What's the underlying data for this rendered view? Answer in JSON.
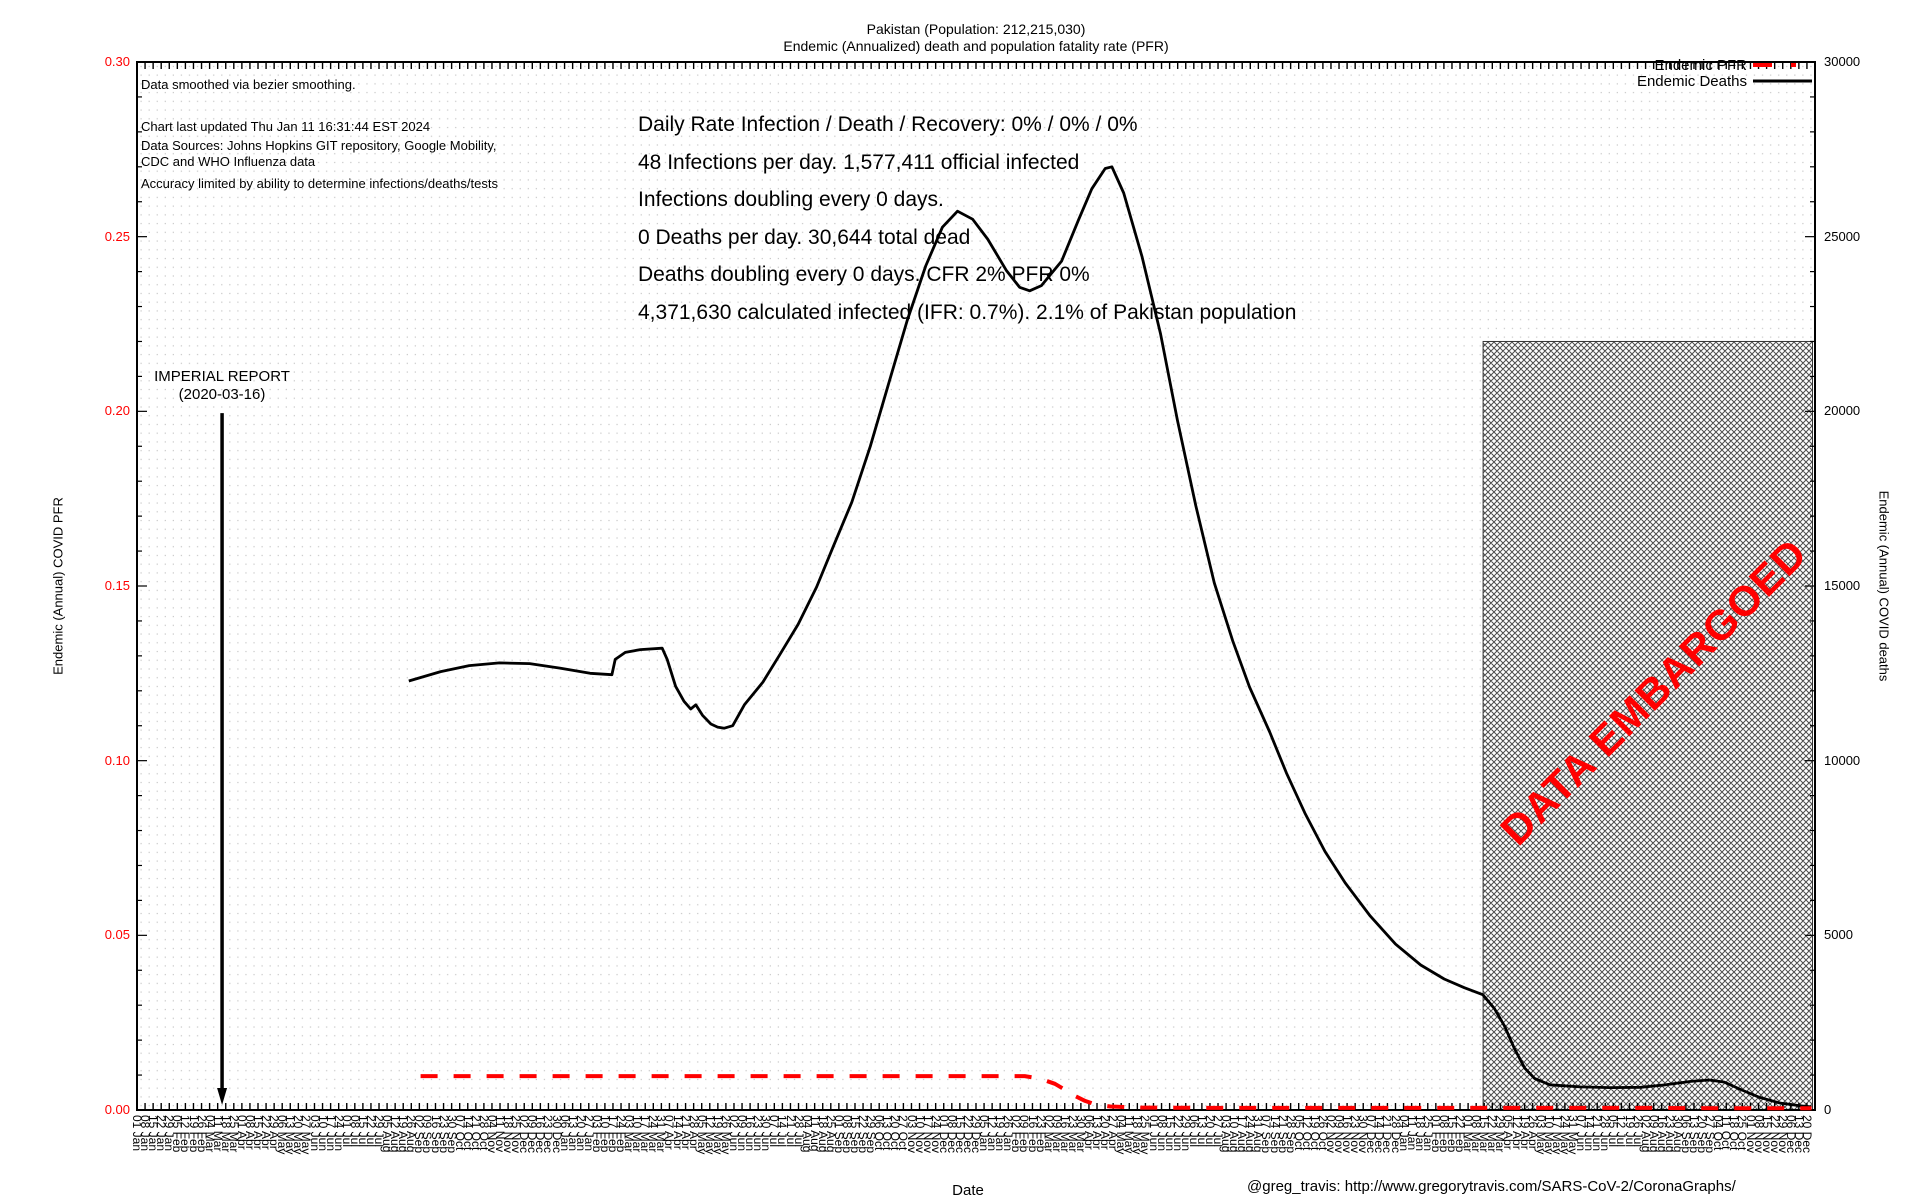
{
  "title": {
    "line1": "Pakistan (Population: 212,215,030)",
    "line2": "Endemic (Annualized) death and population fatality rate (PFR)"
  },
  "annotations": {
    "smoothing": "Data smoothed via bezier smoothing.",
    "updated": "Chart last updated Thu Jan 11 16:31:44 EST 2024",
    "sources_line1": "Data Sources: Johns Hopkins GIT repository, Google Mobility,",
    "sources_line2": "CDC and WHO Influenza data",
    "accuracy": "Accuracy limited by ability to determine infections/deaths/tests",
    "imperial_line1": "IMPERIAL REPORT",
    "imperial_line2": "(2020-03-16)",
    "embargo": "DATA EMBARGOED"
  },
  "stats": {
    "line1": "Daily Rate Infection / Death / Recovery: 0% / 0% / 0%",
    "line2": "48 Infections per day.  1,577,411 official infected",
    "line3": "Infections doubling every 0 days.",
    "line4": "0 Deaths per day.  30,644 total dead",
    "line5": "Deaths doubling every 0 days.  CFR 2%  PFR 0%",
    "line6": "4,371,630 calculated infected (IFR: 0.7%).  2.1% of Pakistan population"
  },
  "legend": {
    "pfr": "Endemic PFR",
    "deaths": "Endemic Deaths"
  },
  "axes": {
    "left_label": "Endemic (Annual) COVID PFR",
    "right_label": "Endemic (Annual) COVID deaths",
    "x_label": "Date",
    "left_ticks": [
      "0.30",
      "0.25",
      "0.20",
      "0.15",
      "0.10",
      "0.05",
      "0.00"
    ],
    "right_ticks": [
      "30000",
      "25000",
      "20000",
      "15000",
      "10000",
      "5000",
      "0"
    ]
  },
  "footer": "@greg_travis: http://www.gregorytravis.com/SARS-CoV-2/CoronaGraphs/",
  "colors": {
    "pfr_line": "#ff0000",
    "deaths_line": "#000000",
    "left_tick_labels": "#ff0000",
    "embargo_text": "#ff0000",
    "grid_dot": "#c6c6c6",
    "hatch": "#4d4d4d"
  },
  "chart_data": {
    "type": "line",
    "x_axis": {
      "unit": "axis_fraction",
      "tick_start_date": "2020-01-01",
      "tick_step_days": 7,
      "tick_count": 208,
      "tick_format": "DD Mon",
      "first_tick_label": "01 Jan",
      "last_tick_label": "20 Dec",
      "rotated_labels": true
    },
    "y_left": {
      "label": "Endemic (Annual) COVID PFR",
      "min": 0,
      "max": 0.3,
      "major_step": 0.05,
      "minor_step": 0.01
    },
    "y_right": {
      "label": "Endemic (Annual) COVID deaths",
      "min": 0,
      "max": 30000,
      "major_step": 5000,
      "minor_step": 1000
    },
    "grid": "fine-dots",
    "legend_position": "top-right-inside",
    "series": [
      {
        "name": "Endemic Deaths",
        "axis": "right",
        "style": "solid",
        "color": "#000000",
        "points": [
          [
            0.162,
            12280
          ],
          [
            0.181,
            12550
          ],
          [
            0.198,
            12720
          ],
          [
            0.216,
            12800
          ],
          [
            0.234,
            12780
          ],
          [
            0.252,
            12650
          ],
          [
            0.27,
            12500
          ],
          [
            0.283,
            12460
          ],
          [
            0.285,
            12900
          ],
          [
            0.291,
            13100
          ],
          [
            0.3,
            13180
          ],
          [
            0.313,
            13220
          ],
          [
            0.316,
            12900
          ],
          [
            0.321,
            12130
          ],
          [
            0.326,
            11700
          ],
          [
            0.33,
            11480
          ],
          [
            0.333,
            11600
          ],
          [
            0.337,
            11300
          ],
          [
            0.342,
            11050
          ],
          [
            0.346,
            10960
          ],
          [
            0.35,
            10930
          ],
          [
            0.355,
            11000
          ],
          [
            0.362,
            11600
          ],
          [
            0.373,
            12250
          ],
          [
            0.383,
            13030
          ],
          [
            0.394,
            13900
          ],
          [
            0.405,
            14970
          ],
          [
            0.415,
            16140
          ],
          [
            0.426,
            17400
          ],
          [
            0.437,
            19000
          ],
          [
            0.448,
            20800
          ],
          [
            0.459,
            22600
          ],
          [
            0.47,
            24160
          ],
          [
            0.48,
            25270
          ],
          [
            0.489,
            25730
          ],
          [
            0.498,
            25500
          ],
          [
            0.507,
            24930
          ],
          [
            0.518,
            24040
          ],
          [
            0.526,
            23550
          ],
          [
            0.532,
            23450
          ],
          [
            0.539,
            23600
          ],
          [
            0.551,
            24300
          ],
          [
            0.561,
            25470
          ],
          [
            0.569,
            26370
          ],
          [
            0.577,
            26950
          ],
          [
            0.581,
            27000
          ],
          [
            0.588,
            26250
          ],
          [
            0.599,
            24420
          ],
          [
            0.61,
            22210
          ],
          [
            0.62,
            19750
          ],
          [
            0.631,
            17300
          ],
          [
            0.642,
            15090
          ],
          [
            0.653,
            13430
          ],
          [
            0.663,
            12110
          ],
          [
            0.675,
            10820
          ],
          [
            0.685,
            9650
          ],
          [
            0.696,
            8500
          ],
          [
            0.708,
            7400
          ],
          [
            0.72,
            6500
          ],
          [
            0.735,
            5550
          ],
          [
            0.75,
            4750
          ],
          [
            0.765,
            4150
          ],
          [
            0.779,
            3750
          ],
          [
            0.791,
            3500
          ],
          [
            0.802,
            3300
          ],
          [
            0.809,
            2900
          ],
          [
            0.815,
            2400
          ],
          [
            0.821,
            1750
          ],
          [
            0.827,
            1200
          ],
          [
            0.833,
            900
          ],
          [
            0.842,
            720
          ],
          [
            0.86,
            660
          ],
          [
            0.878,
            640
          ],
          [
            0.896,
            650
          ],
          [
            0.911,
            720
          ],
          [
            0.926,
            820
          ],
          [
            0.937,
            860
          ],
          [
            0.946,
            800
          ],
          [
            0.955,
            600
          ],
          [
            0.967,
            360
          ],
          [
            0.979,
            200
          ],
          [
            0.991,
            120
          ],
          [
            0.998,
            90
          ]
        ]
      },
      {
        "name": "Endemic PFR",
        "axis": "left",
        "style": "dashed",
        "color": "#ff0000",
        "points": [
          [
            0.169,
            0.0097
          ],
          [
            0.22,
            0.0097
          ],
          [
            0.28,
            0.0097
          ],
          [
            0.34,
            0.0097
          ],
          [
            0.4,
            0.0097
          ],
          [
            0.46,
            0.0097
          ],
          [
            0.5,
            0.0097
          ],
          [
            0.529,
            0.0097
          ],
          [
            0.538,
            0.009
          ],
          [
            0.547,
            0.0075
          ],
          [
            0.553,
            0.0058
          ],
          [
            0.559,
            0.004
          ],
          [
            0.565,
            0.0026
          ],
          [
            0.571,
            0.0016
          ],
          [
            0.58,
            0.001
          ],
          [
            0.598,
            0.0007
          ],
          [
            0.65,
            0.0006
          ],
          [
            0.7,
            0.0006
          ],
          [
            0.75,
            0.0006
          ],
          [
            0.8,
            0.0006
          ],
          [
            0.85,
            0.0006
          ],
          [
            0.9,
            0.0006
          ],
          [
            0.95,
            0.0005
          ],
          [
            0.998,
            0.0005
          ]
        ]
      }
    ],
    "embargo_region": {
      "x_from": 0.8022,
      "x_to": 0.9985,
      "deaths_top": 22000,
      "label": "DATA EMBARGOED"
    },
    "imperial_marker": {
      "date": "2020-03-16",
      "x": 0.0507,
      "pfr_top": 0.1995
    }
  }
}
